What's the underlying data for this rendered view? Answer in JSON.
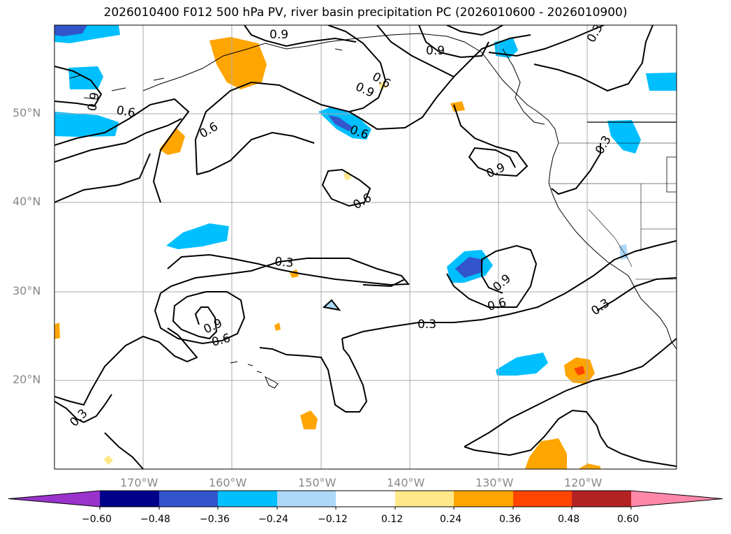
{
  "title": "2026010400 F012 500 hPa PV, river basin precipitation PC (2026010600 - 2026010900)",
  "axes": {
    "lat_labels": [
      "50°N",
      "40°N",
      "30°N",
      "20°N"
    ],
    "lon_labels": [
      "170°W",
      "160°W",
      "150°W",
      "140°W",
      "130°W",
      "120°W"
    ]
  },
  "contour_labels": [
    "0.9",
    "0.9",
    "0.6",
    "0.9",
    "0.6",
    "0.6",
    "0.9",
    "0.6",
    "0.3",
    "0.6",
    "0.9",
    "0.3",
    "0.3",
    "0.9",
    "0.6",
    "0.3",
    "0.9",
    "0.6",
    "0.3",
    "0.3"
  ],
  "colorbar": {
    "ticks": [
      "−0.60",
      "−0.48",
      "−0.36",
      "−0.24",
      "−0.12",
      "0.12",
      "0.24",
      "0.36",
      "0.48",
      "0.60"
    ],
    "colors": [
      "#9933cc",
      "#00008b",
      "#3355cc",
      "#00bfff",
      "#add8f7",
      "#ffffff",
      "#ffe88a",
      "#ffa500",
      "#ff4500",
      "#b22222",
      "#ff88aa"
    ]
  }
}
